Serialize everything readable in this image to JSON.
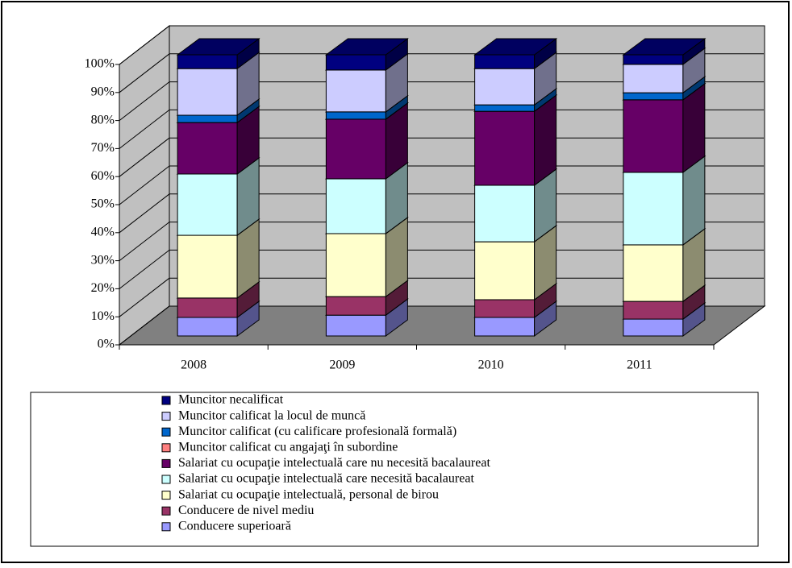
{
  "chart_data": {
    "type": "stacked-bar-3d",
    "categories": [
      "2008",
      "2009",
      "2010",
      "2011"
    ],
    "series": [
      {
        "name": "Conducere superioară",
        "color": "#9999ff",
        "values": [
          6.6,
          7.4,
          6.6,
          6.0
        ]
      },
      {
        "name": "Conducere de nivel mediu",
        "color": "#993366",
        "values": [
          6.9,
          6.6,
          6.3,
          6.3
        ]
      },
      {
        "name": "Salariat cu ocupaţie intelectuală, personal de birou",
        "color": "#ffffcc",
        "values": [
          22.3,
          22.4,
          20.6,
          20.1
        ]
      },
      {
        "name": "Salariat cu ocupaţie intelectuală care necesită bacalaureat",
        "color": "#ccffff",
        "values": [
          21.8,
          19.5,
          20.1,
          25.8
        ]
      },
      {
        "name": "Salariat cu ocupaţie intelectuală care nu necesită bacalaureat",
        "color": "#660066",
        "values": [
          18.3,
          21.2,
          26.3,
          25.8
        ]
      },
      {
        "name": "Muncitor calificat cu angajaţi în subordine",
        "color": "#ff8080",
        "values": [
          0,
          0,
          0,
          0
        ]
      },
      {
        "name": "Muncitor calificat (cu calificare profesională formală)",
        "color": "#0066cc",
        "values": [
          2.6,
          2.6,
          2.3,
          2.5
        ]
      },
      {
        "name": "Muncitor calificat la locul de muncă",
        "color": "#ccccff",
        "values": [
          16.6,
          14.9,
          12.9,
          10.1
        ]
      },
      {
        "name": "Muncitor necalificat",
        "color": "#000080",
        "values": [
          4.9,
          5.4,
          4.9,
          3.4
        ]
      }
    ],
    "ylim": [
      0,
      100
    ],
    "yticks": [
      {
        "value": 0,
        "label": "0%"
      },
      {
        "value": 10,
        "label": "10%"
      },
      {
        "value": 20,
        "label": "20%"
      },
      {
        "value": 30,
        "label": "30%"
      },
      {
        "value": 40,
        "label": "40%"
      },
      {
        "value": 50,
        "label": "50%"
      },
      {
        "value": 60,
        "label": "60%"
      },
      {
        "value": 70,
        "label": "70%"
      },
      {
        "value": 80,
        "label": "80%"
      },
      {
        "value": 90,
        "label": "90%"
      },
      {
        "value": 100,
        "label": "100%"
      }
    ],
    "grid": true
  }
}
